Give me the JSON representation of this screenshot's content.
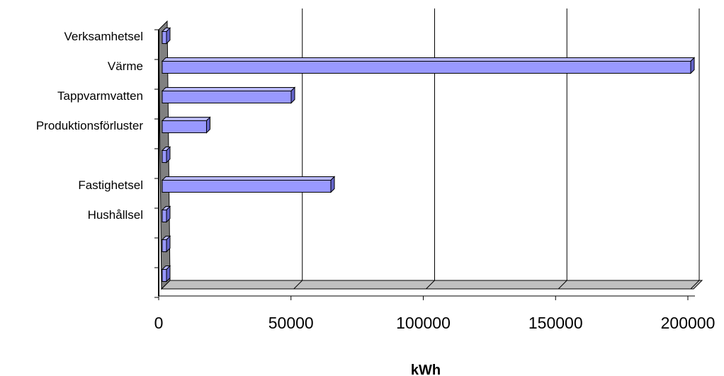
{
  "chart_data": {
    "type": "bar",
    "orientation": "horizontal",
    "three_d": true,
    "categories": [
      "Verksamhetsel",
      "Värme",
      "Tappvarmvatten",
      "Produktionsförluster",
      "",
      "Fastighetsel",
      "Hushållsel",
      "",
      ""
    ],
    "values": [
      0,
      200000,
      49000,
      17000,
      0,
      64000,
      0,
      0,
      0
    ],
    "title": "",
    "xlabel": "kWh",
    "ylabel": "",
    "xlim": [
      0,
      200000
    ],
    "xticks": [
      "0",
      "50000",
      "100000",
      "150000",
      "200000"
    ],
    "grid": true,
    "legend": "none",
    "colors": {
      "bar_face": "#9999ff",
      "bar_top": "#b8b8ff",
      "bar_side": "#6666cc",
      "wall": "#808080",
      "floor": "#c0c0c0"
    }
  }
}
